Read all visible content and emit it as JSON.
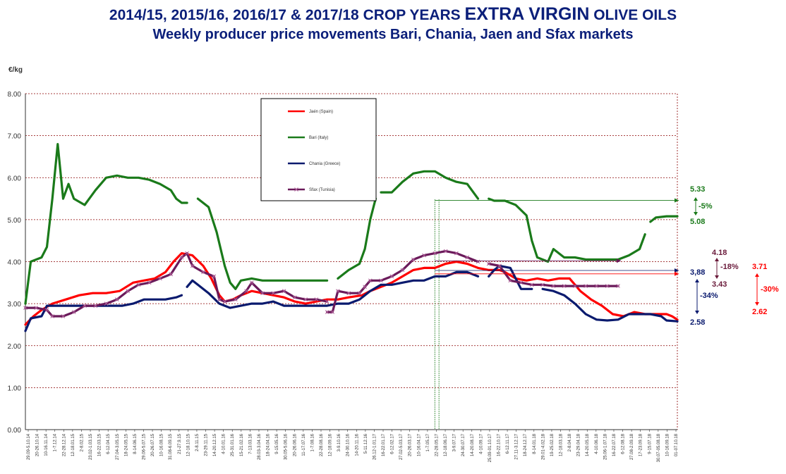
{
  "title_line1_prefix": "2014/15,  2015/16, 2016/17  &  2017/18 CROP YEARS ",
  "title_line1_emph": "EXTRA VIRGIN",
  "title_line1_suffix": " OLIVE OILS",
  "title_line2": "Weekly producer price movements Bari, Chania, Jaen and Sfax markets",
  "chart_data": {
    "type": "line",
    "ylabel": "€/kg",
    "ylim": [
      0,
      8
    ],
    "yticks": [
      "0.00",
      "1.00",
      "2.00",
      "3.00",
      "4.00",
      "5.00",
      "6.00",
      "7.00",
      "8.00"
    ],
    "grid": true,
    "legend_position": "top-center",
    "xtick_labels": [
      "29.09-5.10.14",
      "20-26.10.14",
      "10-16.11.14",
      "1-7.12.14",
      "22-28.12.14",
      "12-18.01.15",
      "2-8.02.15",
      "23.02-1.03.15",
      "16-22.03.15",
      "6-12.04.15",
      "27.04-3.05.15",
      "18-24.05.15",
      "8-14.06.15",
      "29.06-5.07.15",
      "20-26.07.15",
      "10-16.08.15",
      "31.08-6.09.15",
      "21-27.9.15",
      "12-18.10.15",
      "2-8.11.15",
      "23-29.11.15",
      "14-20.12.15",
      "4-10.01.16",
      "25-31.01.16",
      "15-21.02.16",
      "7-13.03.16",
      "28.03-3.04.16",
      "18-24.04.16",
      "9-15.05.16",
      "30.05-5.06.16",
      "20-26.06.16",
      "11-17.07.16",
      "1-7.08.16",
      "22-28.08.16",
      "12-18.09.16",
      "3-9.10.16",
      "24-30.10.16",
      "14-20.11.16",
      "5-11.12.16",
      "26.12-1.01.17",
      "16-22.01.17",
      "6-12.02.17",
      "27.02-5.03.17",
      "20-26.03.17",
      "10-16.04.17",
      "1-7.05.17",
      "22-28.05.17",
      "12-18.06.17",
      "3-9.07.17",
      "24-30.07.17",
      "14-20.08.17",
      "4-10.09.17",
      "25.09-01.10.17",
      "16-22.10.17",
      "6-12.11.17",
      "27.11-3.12.17",
      "18-24.12.17",
      "8-14.01.18",
      "29.01-4.02.18",
      "19-25.02.18",
      "12-18.03.18",
      "2-8.04.18",
      "23-29.04.18",
      "14-20.05.18",
      "4-10.06.18",
      "25.06-1.07.18",
      "16-22.07.18",
      "6-12.08.18",
      "27.08-2.09.18",
      "17-23.09.18",
      "9-15.07.18",
      "30.07-05.08.18",
      "10-16.09.18",
      "01-07.10.18"
    ],
    "series": [
      {
        "name": "Jaén (Spain)",
        "color": "#ff0000",
        "points": [
          [
            0,
            2.5
          ],
          [
            3,
            2.7
          ],
          [
            6,
            2.85
          ],
          [
            10,
            3.0
          ],
          [
            15,
            3.1
          ],
          [
            20,
            3.2
          ],
          [
            25,
            3.25
          ],
          [
            30,
            3.25
          ],
          [
            35,
            3.3
          ],
          [
            40,
            3.5
          ],
          [
            44,
            3.55
          ],
          [
            48,
            3.6
          ],
          [
            52,
            3.75
          ],
          [
            55,
            4.0
          ],
          [
            58,
            4.2
          ],
          [
            62,
            4.15
          ],
          [
            66,
            3.9
          ],
          [
            69,
            3.6
          ],
          [
            72,
            3.2
          ],
          [
            74,
            3.05
          ],
          [
            77,
            3.1
          ],
          [
            80,
            3.2
          ],
          [
            84,
            3.3
          ],
          [
            88,
            3.25
          ],
          [
            92,
            3.2
          ],
          [
            96,
            3.15
          ],
          [
            100,
            3.05
          ],
          [
            104,
            3.0
          ],
          [
            108,
            3.05
          ],
          [
            112,
            3.1
          ],
          [
            116,
            3.1
          ],
          [
            120,
            3.15
          ],
          [
            125,
            3.2
          ],
          [
            128,
            3.3
          ],
          [
            132,
            3.4
          ],
          [
            136,
            3.5
          ],
          [
            140,
            3.65
          ],
          [
            144,
            3.8
          ],
          [
            148,
            3.85
          ],
          [
            152,
            3.85
          ],
          [
            156,
            3.95
          ],
          [
            160,
            4.0
          ],
          [
            164,
            3.95
          ],
          [
            168,
            3.85
          ],
          [
            172,
            3.8
          ],
          [
            176,
            3.8
          ],
          [
            178,
            3.75
          ],
          [
            182,
            3.6
          ],
          [
            186,
            3.55
          ],
          [
            190,
            3.6
          ],
          [
            194,
            3.55
          ],
          [
            198,
            3.6
          ],
          [
            202,
            3.6
          ],
          [
            206,
            3.3
          ],
          [
            210,
            3.1
          ],
          [
            214,
            2.95
          ],
          [
            218,
            2.75
          ],
          [
            222,
            2.7
          ],
          [
            226,
            2.8
          ],
          [
            230,
            2.75
          ],
          [
            234,
            2.75
          ],
          [
            238,
            2.75
          ],
          [
            240,
            2.7
          ],
          [
            242,
            2.62
          ]
        ]
      },
      {
        "name": "Bari (Italy)",
        "color": "#1a7a1a",
        "points": [
          [
            0,
            3.0
          ],
          [
            2,
            4.0
          ],
          [
            6,
            4.1
          ],
          [
            8,
            4.35
          ],
          [
            10,
            5.5
          ],
          [
            12,
            6.8
          ],
          [
            14,
            5.5
          ],
          [
            16,
            5.85
          ],
          [
            18,
            5.5
          ],
          [
            22,
            5.35
          ],
          [
            26,
            5.7
          ],
          [
            30,
            6.0
          ],
          [
            34,
            6.05
          ],
          [
            38,
            6.0
          ],
          [
            42,
            6.0
          ],
          [
            46,
            5.95
          ],
          [
            50,
            5.85
          ],
          [
            54,
            5.7
          ],
          [
            56,
            5.5
          ],
          [
            58,
            5.4
          ],
          [
            60,
            5.4
          ],
          [
            null,
            null
          ],
          [
            64,
            5.5
          ],
          [
            68,
            5.3
          ],
          [
            71,
            4.7
          ],
          [
            74,
            3.9
          ],
          [
            76,
            3.5
          ],
          [
            78,
            3.35
          ],
          [
            80,
            3.55
          ],
          [
            84,
            3.6
          ],
          [
            88,
            3.55
          ],
          [
            92,
            3.55
          ],
          [
            96,
            3.55
          ],
          [
            100,
            3.55
          ],
          [
            104,
            3.55
          ],
          [
            108,
            3.55
          ],
          [
            112,
            3.55
          ],
          [
            null,
            null
          ],
          [
            116,
            3.6
          ],
          [
            120,
            3.8
          ],
          [
            124,
            3.95
          ],
          [
            126,
            4.3
          ],
          [
            128,
            5.0
          ],
          [
            130,
            5.5
          ],
          [
            null,
            null
          ],
          [
            132,
            5.65
          ],
          [
            136,
            5.65
          ],
          [
            140,
            5.9
          ],
          [
            144,
            6.1
          ],
          [
            148,
            6.15
          ],
          [
            152,
            6.15
          ],
          [
            156,
            6.0
          ],
          [
            160,
            5.9
          ],
          [
            164,
            5.85
          ],
          [
            168,
            5.5
          ],
          [
            null,
            null
          ],
          [
            172,
            5.5
          ],
          [
            174,
            5.45
          ],
          [
            178,
            5.45
          ],
          [
            182,
            5.35
          ],
          [
            186,
            5.1
          ],
          [
            188,
            4.5
          ],
          [
            190,
            4.1
          ],
          [
            194,
            4.0
          ],
          [
            196,
            4.3
          ],
          [
            200,
            4.1
          ],
          [
            204,
            4.1
          ],
          [
            208,
            4.05
          ],
          [
            212,
            4.05
          ],
          [
            216,
            4.05
          ],
          [
            220,
            4.05
          ],
          [
            224,
            4.15
          ],
          [
            228,
            4.3
          ],
          [
            230,
            4.65
          ],
          [
            null,
            null
          ],
          [
            232,
            4.95
          ],
          [
            234,
            5.05
          ],
          [
            238,
            5.08
          ],
          [
            242,
            5.08
          ]
        ]
      },
      {
        "name": "Chania (Greece)",
        "color": "#0a1a6e",
        "points": [
          [
            0,
            2.35
          ],
          [
            2,
            2.65
          ],
          [
            6,
            2.7
          ],
          [
            8,
            2.95
          ],
          [
            12,
            2.95
          ],
          [
            16,
            2.95
          ],
          [
            20,
            2.95
          ],
          [
            24,
            2.95
          ],
          [
            28,
            2.95
          ],
          [
            32,
            2.95
          ],
          [
            36,
            2.95
          ],
          [
            40,
            3.0
          ],
          [
            44,
            3.1
          ],
          [
            48,
            3.1
          ],
          [
            52,
            3.1
          ],
          [
            56,
            3.15
          ],
          [
            58,
            3.2
          ],
          [
            null,
            null
          ],
          [
            60,
            3.4
          ],
          [
            62,
            3.55
          ],
          [
            64,
            3.45
          ],
          [
            68,
            3.25
          ],
          [
            72,
            3.0
          ],
          [
            76,
            2.9
          ],
          [
            80,
            2.95
          ],
          [
            84,
            3.0
          ],
          [
            88,
            3.0
          ],
          [
            92,
            3.05
          ],
          [
            96,
            2.95
          ],
          [
            100,
            2.95
          ],
          [
            104,
            2.95
          ],
          [
            108,
            2.95
          ],
          [
            112,
            2.95
          ],
          [
            116,
            3.0
          ],
          [
            120,
            3.0
          ],
          [
            124,
            3.1
          ],
          [
            128,
            3.3
          ],
          [
            132,
            3.45
          ],
          [
            136,
            3.45
          ],
          [
            140,
            3.5
          ],
          [
            144,
            3.55
          ],
          [
            148,
            3.55
          ],
          [
            152,
            3.65
          ],
          [
            156,
            3.65
          ],
          [
            160,
            3.75
          ],
          [
            164,
            3.75
          ],
          [
            168,
            3.65
          ],
          [
            null,
            null
          ],
          [
            172,
            3.65
          ],
          [
            174,
            3.8
          ],
          [
            176,
            3.9
          ],
          [
            180,
            3.85
          ],
          [
            184,
            3.35
          ],
          [
            188,
            3.35
          ],
          [
            null,
            null
          ],
          [
            192,
            3.35
          ],
          [
            196,
            3.3
          ],
          [
            200,
            3.2
          ],
          [
            204,
            3.0
          ],
          [
            208,
            2.75
          ],
          [
            212,
            2.62
          ],
          [
            216,
            2.6
          ],
          [
            220,
            2.62
          ],
          [
            224,
            2.75
          ],
          [
            228,
            2.75
          ],
          [
            232,
            2.75
          ],
          [
            236,
            2.7
          ],
          [
            238,
            2.6
          ],
          [
            242,
            2.58
          ]
        ]
      },
      {
        "name": "Sfax (Tunisia)",
        "color": "#6a1a5a",
        "points": [
          [
            0,
            2.9
          ],
          [
            4,
            2.9
          ],
          [
            8,
            2.85
          ],
          [
            10,
            2.7
          ],
          [
            14,
            2.7
          ],
          [
            18,
            2.8
          ],
          [
            22,
            2.95
          ],
          [
            26,
            2.95
          ],
          [
            30,
            3.0
          ],
          [
            34,
            3.1
          ],
          [
            38,
            3.3
          ],
          [
            42,
            3.45
          ],
          [
            46,
            3.5
          ],
          [
            50,
            3.6
          ],
          [
            54,
            3.7
          ],
          [
            58,
            4.1
          ],
          [
            60,
            4.2
          ],
          [
            62,
            3.9
          ],
          [
            66,
            3.75
          ],
          [
            70,
            3.65
          ],
          [
            72,
            3.1
          ],
          [
            74,
            3.05
          ],
          [
            78,
            3.1
          ],
          [
            82,
            3.3
          ],
          [
            84,
            3.5
          ],
          [
            88,
            3.25
          ],
          [
            92,
            3.25
          ],
          [
            96,
            3.3
          ],
          [
            100,
            3.15
          ],
          [
            104,
            3.1
          ],
          [
            108,
            3.1
          ],
          [
            112,
            3.05
          ],
          [
            null,
            null
          ],
          [
            112,
            2.8
          ],
          [
            114,
            2.8
          ],
          [
            116,
            3.3
          ],
          [
            120,
            3.25
          ],
          [
            124,
            3.25
          ],
          [
            126,
            3.4
          ],
          [
            128,
            3.55
          ],
          [
            132,
            3.55
          ],
          [
            136,
            3.65
          ],
          [
            140,
            3.8
          ],
          [
            144,
            4.05
          ],
          [
            148,
            4.15
          ],
          [
            152,
            4.2
          ],
          [
            156,
            4.25
          ],
          [
            160,
            4.2
          ],
          [
            164,
            4.1
          ],
          [
            168,
            4.0
          ],
          [
            null,
            null
          ],
          [
            172,
            3.95
          ],
          [
            176,
            3.9
          ],
          [
            180,
            3.55
          ],
          [
            184,
            3.5
          ],
          [
            188,
            3.45
          ],
          [
            192,
            3.45
          ],
          [
            196,
            3.42
          ],
          [
            200,
            3.42
          ],
          [
            204,
            3.42
          ],
          [
            208,
            3.42
          ],
          [
            212,
            3.42
          ],
          [
            216,
            3.42
          ],
          [
            220,
            3.42
          ]
        ]
      }
    ],
    "annotations": [
      {
        "label": "5.33",
        "color": "#1a7a1a"
      },
      {
        "label": "-5%",
        "color": "#1a7a1a"
      },
      {
        "label": "5.08",
        "color": "#1a7a1a"
      },
      {
        "label": "4.18",
        "color": "#6a1a3a"
      },
      {
        "label": "-18%",
        "color": "#6a1a3a"
      },
      {
        "label": "3.43",
        "color": "#6a1a3a"
      },
      {
        "label": "3,88",
        "color": "#0a1a6e"
      },
      {
        "label": "-34%",
        "color": "#0a1a6e"
      },
      {
        "label": "2.58",
        "color": "#0a1a6e"
      },
      {
        "label": "3.71",
        "color": "#ff0000"
      },
      {
        "label": "-30%",
        "color": "#ff0000"
      },
      {
        "label": "2.62",
        "color": "#ff0000"
      }
    ]
  }
}
